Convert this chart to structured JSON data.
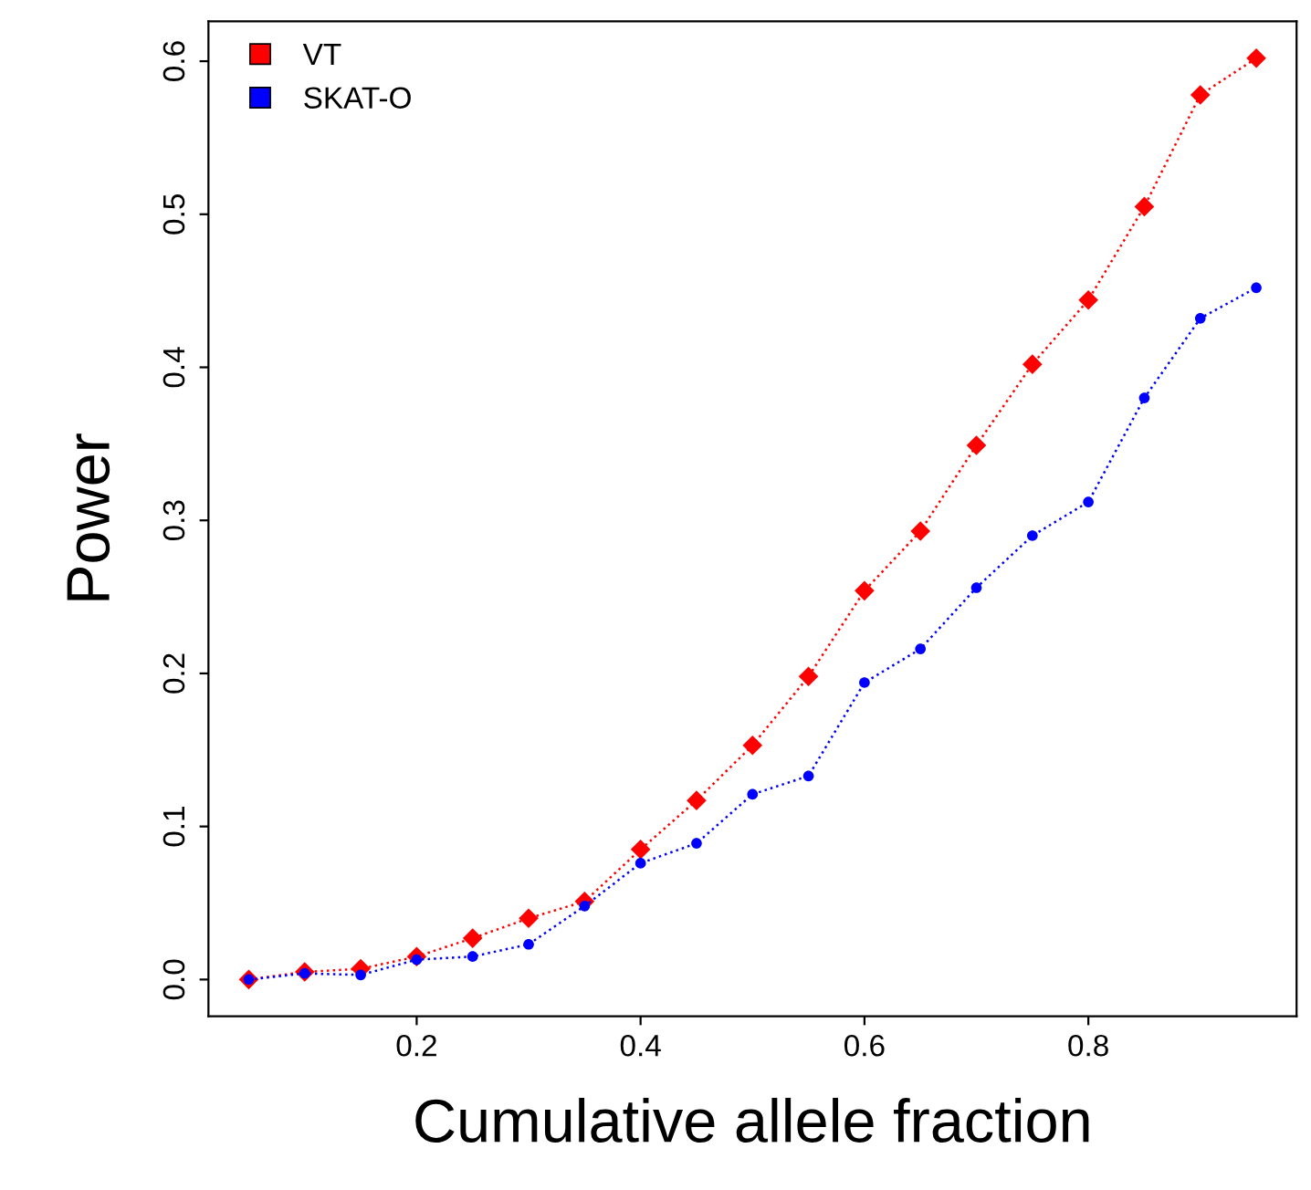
{
  "chart_data": {
    "type": "line",
    "xlabel": "Cumulative allele fraction",
    "ylabel": "Power",
    "x": [
      0.05,
      0.1,
      0.15,
      0.2,
      0.25,
      0.3,
      0.35,
      0.4,
      0.45,
      0.5,
      0.55,
      0.6,
      0.65,
      0.7,
      0.75,
      0.8,
      0.85,
      0.9,
      0.95
    ],
    "series": [
      {
        "name": "VT",
        "color": "#ff0000",
        "marker": "diamond",
        "values": [
          0.0,
          0.005,
          0.007,
          0.015,
          0.027,
          0.04,
          0.051,
          0.085,
          0.117,
          0.153,
          0.198,
          0.254,
          0.293,
          0.349,
          0.402,
          0.444,
          0.505,
          0.578,
          0.602
        ]
      },
      {
        "name": "SKAT-O",
        "color": "#0000ff",
        "marker": "circle",
        "values": [
          0.0,
          0.004,
          0.003,
          0.013,
          0.015,
          0.023,
          0.048,
          0.076,
          0.089,
          0.121,
          0.133,
          0.194,
          0.216,
          0.256,
          0.29,
          0.312,
          0.38,
          0.432,
          0.452
        ]
      }
    ],
    "xlim": [
      0.014,
      0.986
    ],
    "xticks": [
      {
        "value": 0.2,
        "label": "0.2"
      },
      {
        "value": 0.4,
        "label": "0.4"
      },
      {
        "value": 0.6,
        "label": "0.6"
      },
      {
        "value": 0.8,
        "label": "0.8"
      }
    ],
    "ylim": [
      -0.024,
      0.626
    ],
    "yticks": [
      {
        "value": 0,
        "label": "0.0"
      },
      {
        "value": 0.1,
        "label": "0.1"
      },
      {
        "value": 0.2,
        "label": "0.2"
      },
      {
        "value": 0.3,
        "label": "0.3"
      },
      {
        "value": 0.4,
        "label": "0.4"
      },
      {
        "value": 0.5,
        "label": "0.5"
      },
      {
        "value": 0.6,
        "label": "0.6"
      }
    ],
    "line_style": "dotted",
    "grid": false,
    "legend": "top left"
  }
}
